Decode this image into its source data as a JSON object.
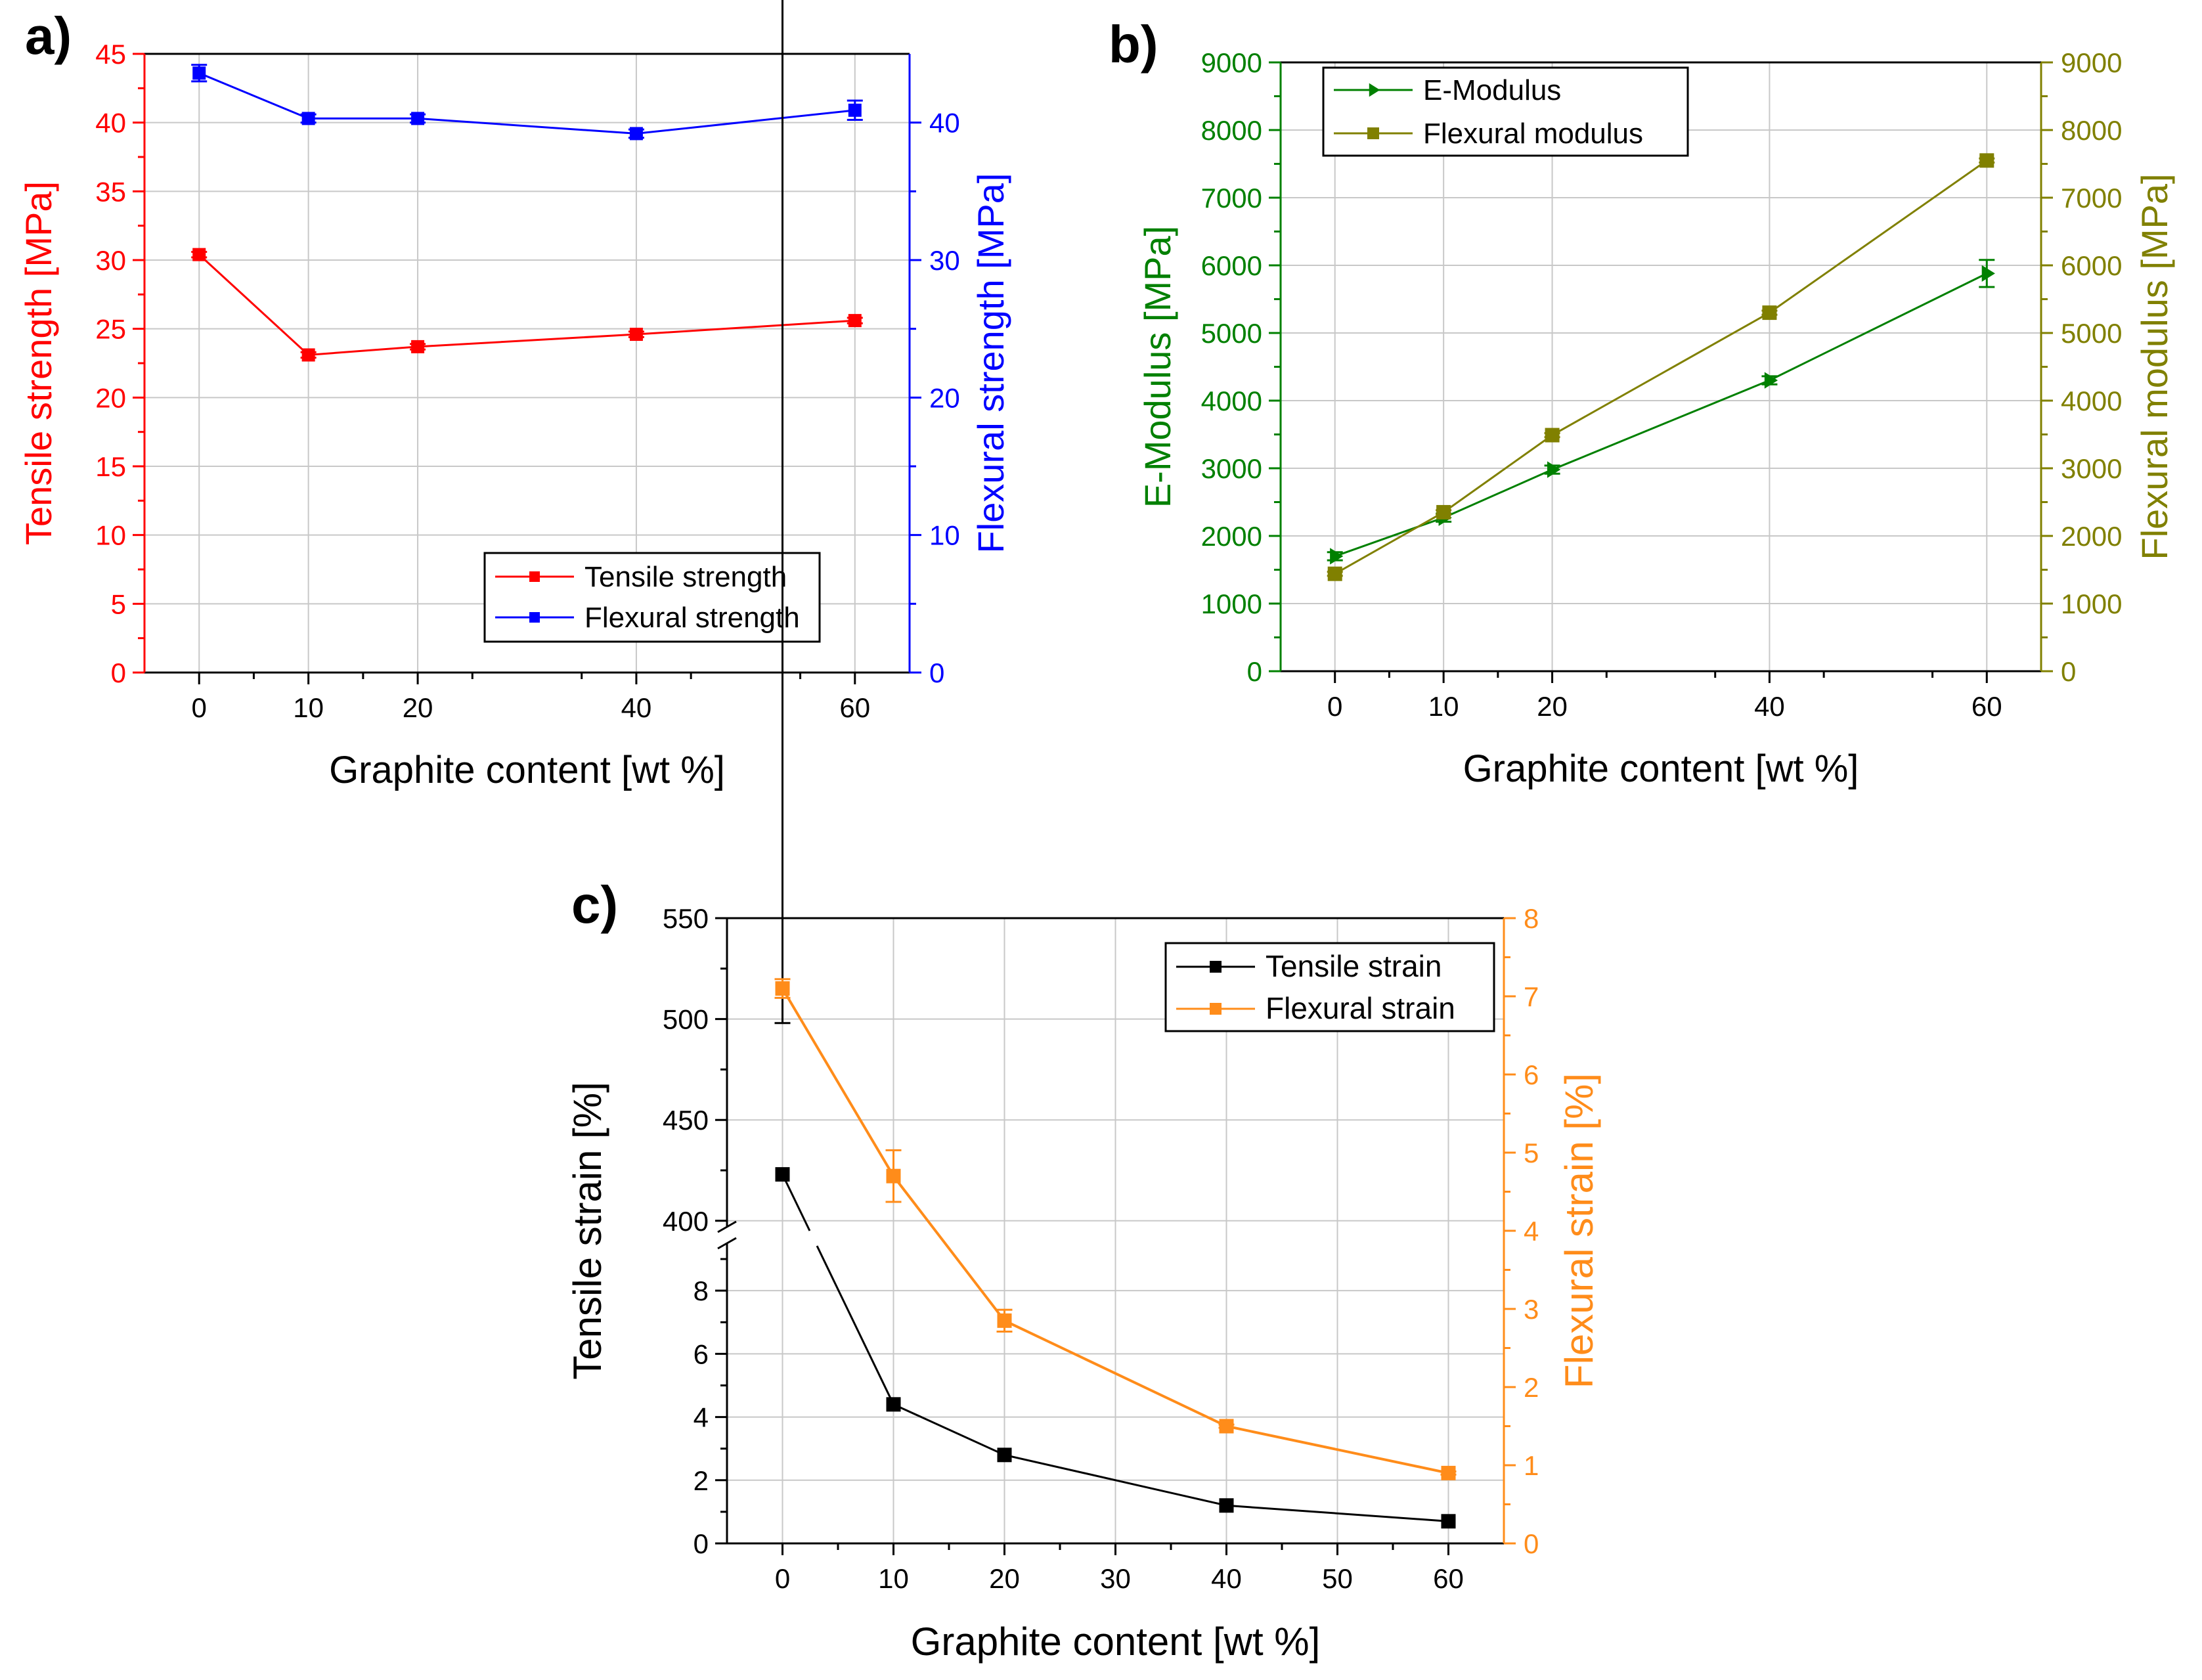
{
  "chart_data": [
    {
      "panel_label": "a)",
      "type": "line",
      "x": [
        0,
        10,
        20,
        40,
        60
      ],
      "xlabel": "Graphite content [wt %]",
      "xticks": [
        0,
        10,
        20,
        40,
        60
      ],
      "xlim": [
        -5,
        65
      ],
      "ylabel_left": "Tensile strength [MPa]",
      "ylabel_right": "Flexural strength [MPa]",
      "ylim_left": [
        0,
        45
      ],
      "yticks_left": [
        0,
        5,
        10,
        15,
        20,
        25,
        30,
        35,
        40,
        45
      ],
      "ylim_right": [
        0,
        45
      ],
      "yticks_right": [
        0,
        10,
        20,
        30,
        40
      ],
      "left_axis_color": "#ff0000",
      "right_axis_color": "#0000ff",
      "grid": true,
      "legend_position": "bottom-right",
      "series": [
        {
          "name": "Tensile strength",
          "axis": "left",
          "color": "#ff0000",
          "marker": "square",
          "values": [
            30.4,
            23.1,
            23.7,
            24.6,
            25.6
          ],
          "errors": [
            0.2,
            0.2,
            0.2,
            0.2,
            0.2
          ]
        },
        {
          "name": "Flexural strength",
          "axis": "right",
          "color": "#0000ff",
          "marker": "square",
          "values": [
            43.6,
            40.3,
            40.3,
            39.2,
            40.9
          ],
          "errors": [
            0.6,
            0.3,
            0.3,
            0.3,
            0.7
          ]
        }
      ]
    },
    {
      "panel_label": "b)",
      "type": "line",
      "x": [
        0,
        10,
        20,
        40,
        60
      ],
      "xlabel": "Graphite content [wt %]",
      "xticks": [
        0,
        10,
        20,
        40,
        60
      ],
      "xlim": [
        -5,
        65
      ],
      "ylabel_left": "E-Modulus [MPa]",
      "ylabel_right": "Flexural modulus [MPa]",
      "ylim_left": [
        0,
        9000
      ],
      "yticks_left": [
        0,
        1000,
        2000,
        3000,
        4000,
        5000,
        6000,
        7000,
        8000,
        9000
      ],
      "ylim_right": [
        0,
        9000
      ],
      "yticks_right": [
        0,
        1000,
        2000,
        3000,
        4000,
        5000,
        6000,
        7000,
        8000,
        9000
      ],
      "left_axis_color": "#008000",
      "right_axis_color": "#808000",
      "grid": true,
      "legend_position": "top-left",
      "series": [
        {
          "name": "E-Modulus",
          "axis": "left",
          "color": "#008000",
          "marker": "triangle-right",
          "values": [
            1700,
            2270,
            2980,
            4300,
            5880
          ],
          "errors": [
            60,
            60,
            60,
            60,
            200
          ]
        },
        {
          "name": "Flexural modulus",
          "axis": "right",
          "color": "#808000",
          "marker": "square",
          "values": [
            1440,
            2350,
            3490,
            5300,
            7550
          ],
          "errors": [
            30,
            30,
            30,
            30,
            30
          ]
        }
      ]
    },
    {
      "panel_label": "c)",
      "type": "line",
      "x": [
        0,
        10,
        20,
        40,
        60
      ],
      "xlabel": "Graphite content [wt %]",
      "xticks": [
        0,
        10,
        20,
        30,
        40,
        50,
        60
      ],
      "xlim": [
        -5,
        65
      ],
      "ylabel_left": "Tensile strain [%]",
      "ylabel_right": "Flexural strain [%]",
      "y_axis_break": {
        "lower_range": [
          0,
          9.5
        ],
        "upper_range": [
          397,
          550
        ]
      },
      "yticks_left_lower": [
        0,
        2,
        4,
        6,
        8
      ],
      "yticks_left_upper": [
        400,
        450,
        500,
        550
      ],
      "ylim_right": [
        0,
        8
      ],
      "yticks_right": [
        0,
        1,
        2,
        3,
        4,
        5,
        6,
        7,
        8
      ],
      "left_axis_color": "#000000",
      "right_axis_color": "#ff8c1a",
      "grid": true,
      "legend_position": "top-right",
      "series": [
        {
          "name": "Tensile strain",
          "axis": "left",
          "color": "#000000",
          "marker": "square",
          "values": [
            423,
            4.4,
            2.8,
            1.2,
            0.7
          ],
          "errors": [
            75,
            0,
            0,
            0,
            0
          ]
        },
        {
          "name": "Flexural strain",
          "axis": "right",
          "color": "#ff8c1a",
          "marker": "square",
          "values": [
            7.1,
            4.7,
            2.85,
            1.5,
            0.9
          ],
          "errors": [
            0.12,
            0.33,
            0.14,
            0.02,
            0.02
          ]
        }
      ]
    }
  ]
}
